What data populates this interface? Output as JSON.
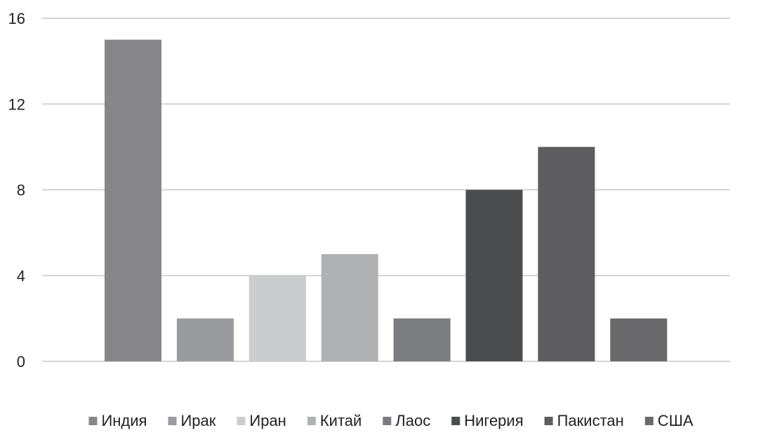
{
  "chart_data": {
    "type": "bar",
    "title": "",
    "xlabel": "",
    "ylabel": "",
    "ylim": [
      0,
      16
    ],
    "yticks": [
      0,
      4,
      8,
      12,
      16
    ],
    "ytick_labels": [
      "0",
      "4",
      "8",
      "12",
      "16"
    ],
    "grid": true,
    "legend_position": "bottom",
    "series": [
      {
        "name": "Индия",
        "value": 15,
        "color": "#87878a"
      },
      {
        "name": "Ирак",
        "value": 2,
        "color": "#9a9b9e"
      },
      {
        "name": "Иран",
        "value": 4,
        "color": "#cbcccd"
      },
      {
        "name": "Китай",
        "value": 5,
        "color": "#b0b1b3"
      },
      {
        "name": "Лаос",
        "value": 2,
        "color": "#7b7c7f"
      },
      {
        "name": "Нигерия",
        "value": 8,
        "color": "#4b4c4d"
      },
      {
        "name": "Пакистан",
        "value": 10,
        "color": "#5d5d5f"
      },
      {
        "name": "США",
        "value": 2,
        "color": "#6a6a6c"
      }
    ]
  }
}
